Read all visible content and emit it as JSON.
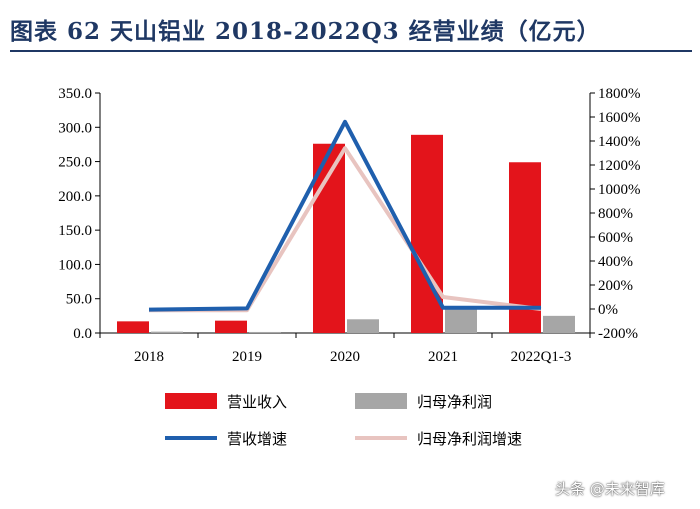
{
  "title": "图表 62   天山铝业 2018-2022Q3 经营业绩（亿元）",
  "watermark": "头条 @未来智库",
  "colors": {
    "title": "#1f3864",
    "revenue": "#e3141b",
    "net_profit": "#a6a6a6",
    "revenue_growth": "#1f5fad",
    "profit_growth": "#e8c4c0"
  },
  "chart_data": {
    "type": "bar",
    "categories": [
      "2018",
      "2019",
      "2020",
      "2021",
      "2022Q1-3"
    ],
    "left_axis": {
      "ylim": [
        0,
        350
      ],
      "ticks": [
        0,
        50,
        100,
        150,
        200,
        250,
        300,
        350
      ],
      "tick_labels": [
        "0.0",
        "50.0",
        "100.0",
        "150.0",
        "200.0",
        "250.0",
        "300.0",
        "350.0"
      ]
    },
    "right_axis": {
      "ylim": [
        -200,
        1800
      ],
      "ticks": [
        -200,
        0,
        200,
        400,
        600,
        800,
        1000,
        1200,
        1400,
        1600,
        1800
      ],
      "tick_labels": [
        "-200%",
        "0%",
        "200%",
        "400%",
        "600%",
        "800%",
        "1000%",
        "1200%",
        "1400%",
        "1600%",
        "1800%"
      ]
    },
    "series": [
      {
        "name": "营业收入",
        "type": "bar",
        "axis": "left",
        "color": "#e3141b",
        "values": [
          17,
          18,
          276,
          289,
          249
        ]
      },
      {
        "name": "归母净利润",
        "type": "bar",
        "axis": "left",
        "color": "#a6a6a6",
        "values": [
          2,
          1.5,
          20,
          35,
          25
        ]
      },
      {
        "name": "营收增速",
        "type": "line",
        "axis": "right",
        "color": "#1f5fad",
        "values": [
          -5,
          5,
          1560,
          10,
          10
        ]
      },
      {
        "name": "归母净利润增速",
        "type": "line",
        "axis": "right",
        "color": "#e8c4c0",
        "values": [
          -10,
          -10,
          1340,
          100,
          0
        ]
      }
    ],
    "legend_position": "bottom",
    "grid": false
  }
}
